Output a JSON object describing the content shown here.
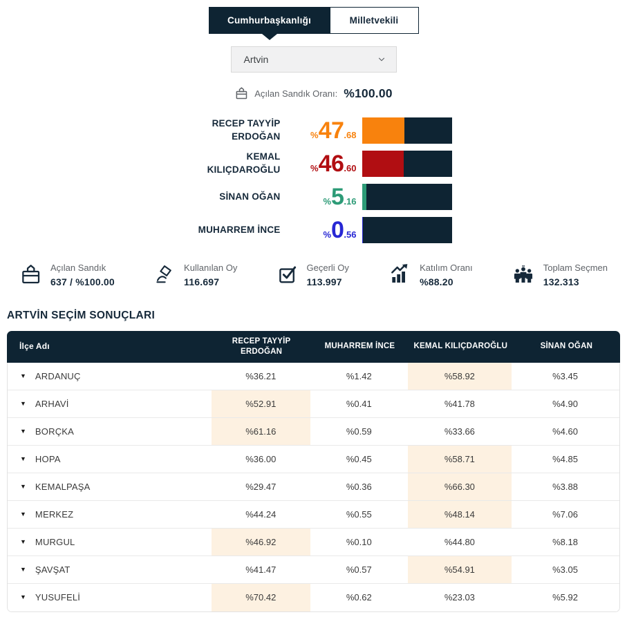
{
  "tabs": [
    {
      "label": "Cumhurbaşkanlığı",
      "active": true
    },
    {
      "label": "Milletvekili",
      "active": false
    }
  ],
  "province_select": {
    "value": "Artvin"
  },
  "ballot_rate": {
    "label": "Açılan Sandık Oranı:",
    "value": "%100.00"
  },
  "chart_data": {
    "type": "bar",
    "title": "Cumhurbaşkanlığı sonuçları - Artvin",
    "xlim": [
      0,
      100
    ],
    "bar_background": "#0e2433",
    "series": [
      {
        "name": "RECEP TAYYİP ERDOĞAN",
        "value": 47.68,
        "pct_int": "47",
        "pct_dec": ".68",
        "color": "#f8820d"
      },
      {
        "name": "KEMAL KILIÇDAROĞLU",
        "value": 46.6,
        "pct_int": "46",
        "pct_dec": ".60",
        "color": "#b10e12"
      },
      {
        "name": "SİNAN OĞAN",
        "value": 5.16,
        "pct_int": "5",
        "pct_dec": ".16",
        "color": "#2d9b77"
      },
      {
        "name": "MUHARREM İNCE",
        "value": 0.56,
        "pct_int": "0",
        "pct_dec": ".56",
        "color": "#2727d4"
      }
    ]
  },
  "stats": [
    {
      "icon": "ballot-box-icon",
      "label": "Açılan Sandık",
      "value": "637 / %100.00"
    },
    {
      "icon": "cast-vote-icon",
      "label": "Kullanılan Oy",
      "value": "116.697"
    },
    {
      "icon": "valid-vote-icon",
      "label": "Geçerli Oy",
      "value": "113.997"
    },
    {
      "icon": "participation-icon",
      "label": "Katılım Oranı",
      "value": "%88.20"
    },
    {
      "icon": "voters-icon",
      "label": "Toplam Seçmen",
      "value": "132.313"
    }
  ],
  "section_title": "ARTVİN SEÇİM SONUÇLARI",
  "table": {
    "columns": [
      "İlçe Adı",
      "RECEP TAYYİP ERDOĞAN",
      "MUHARREM İNCE",
      "KEMAL KILIÇDAROĞLU",
      "SİNAN OĞAN"
    ],
    "highlight_color": "#fdf1e1",
    "rows": [
      {
        "district": "ARDANUÇ",
        "values": [
          "%36.21",
          "%1.42",
          "%58.92",
          "%3.45"
        ],
        "highlight": 2
      },
      {
        "district": "ARHAVİ",
        "values": [
          "%52.91",
          "%0.41",
          "%41.78",
          "%4.90"
        ],
        "highlight": 0
      },
      {
        "district": "BORÇKA",
        "values": [
          "%61.16",
          "%0.59",
          "%33.66",
          "%4.60"
        ],
        "highlight": 0
      },
      {
        "district": "HOPA",
        "values": [
          "%36.00",
          "%0.45",
          "%58.71",
          "%4.85"
        ],
        "highlight": 2
      },
      {
        "district": "KEMALPAŞA",
        "values": [
          "%29.47",
          "%0.36",
          "%66.30",
          "%3.88"
        ],
        "highlight": 2
      },
      {
        "district": "MERKEZ",
        "values": [
          "%44.24",
          "%0.55",
          "%48.14",
          "%7.06"
        ],
        "highlight": 2
      },
      {
        "district": "MURGUL",
        "values": [
          "%46.92",
          "%0.10",
          "%44.80",
          "%8.18"
        ],
        "highlight": 0
      },
      {
        "district": "ŞAVŞAT",
        "values": [
          "%41.47",
          "%0.57",
          "%54.91",
          "%3.05"
        ],
        "highlight": 2
      },
      {
        "district": "YUSUFELİ",
        "values": [
          "%70.42",
          "%0.62",
          "%23.03",
          "%5.92"
        ],
        "highlight": 0
      }
    ]
  },
  "colors": {
    "navy": "#0e2433",
    "erdogan_orange": "#f8820d",
    "kilicdaroglu_red": "#b10e12",
    "ogan_green": "#2d9b77",
    "ince_blue": "#2727d4",
    "highlight_peach": "#fdf1e1"
  }
}
